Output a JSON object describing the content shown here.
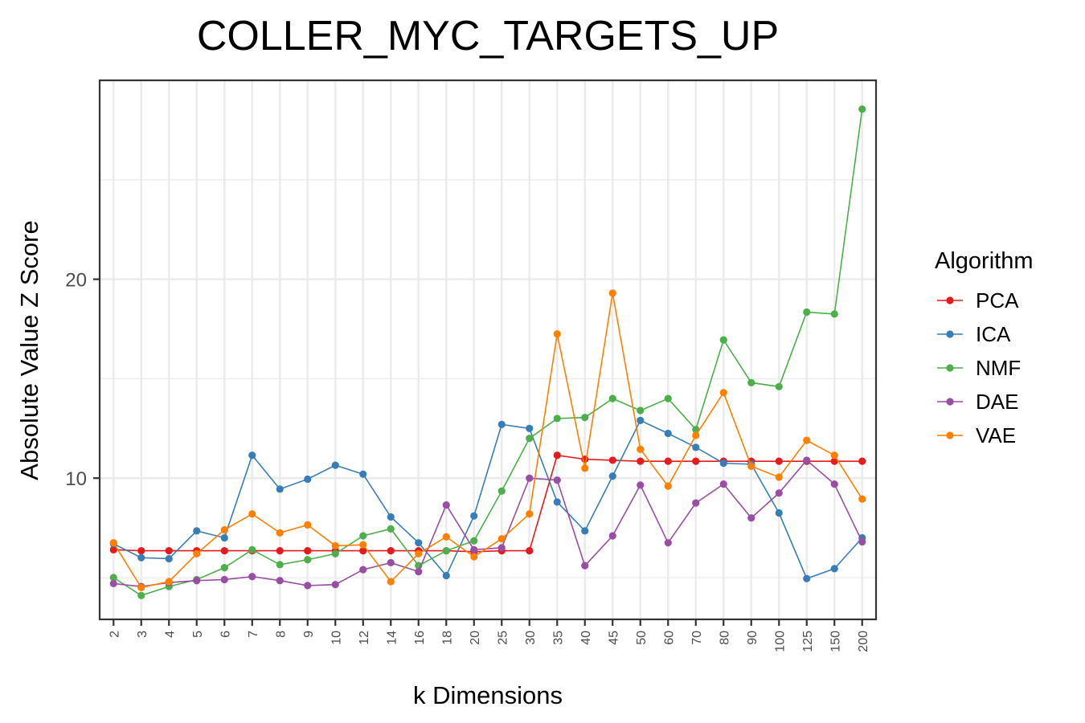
{
  "chart_data": {
    "type": "line",
    "title": "COLLER_MYC_TARGETS_UP",
    "xlabel": "k Dimensions",
    "ylabel": "Absolute Value Z Score",
    "categories": [
      "2",
      "3",
      "4",
      "5",
      "6",
      "7",
      "8",
      "9",
      "10",
      "12",
      "14",
      "16",
      "18",
      "20",
      "25",
      "30",
      "35",
      "40",
      "45",
      "50",
      "60",
      "70",
      "80",
      "90",
      "100",
      "125",
      "150",
      "200"
    ],
    "y_ticks": [
      "10",
      "20"
    ],
    "ylim": [
      2.9,
      30.0
    ],
    "grid": true,
    "legend": {
      "title": "Algorithm",
      "placement": "right"
    },
    "series": [
      {
        "name": "PCA",
        "color": "#e41a1c",
        "values": [
          6.4,
          6.35,
          6.35,
          6.35,
          6.35,
          6.35,
          6.35,
          6.35,
          6.35,
          6.35,
          6.35,
          6.35,
          6.35,
          6.3,
          6.35,
          6.35,
          11.15,
          10.95,
          10.9,
          10.85,
          10.85,
          10.85,
          10.85,
          10.85,
          10.85,
          10.85,
          10.85,
          10.85
        ]
      },
      {
        "name": "ICA",
        "color": "#377eb8",
        "values": [
          6.7,
          6.0,
          5.95,
          7.35,
          7.0,
          11.15,
          9.45,
          9.95,
          10.65,
          10.2,
          8.05,
          6.75,
          5.1,
          8.1,
          12.7,
          12.5,
          8.8,
          7.35,
          10.1,
          12.9,
          12.25,
          11.55,
          10.75,
          10.7,
          8.25,
          4.95,
          5.45,
          7.0
        ]
      },
      {
        "name": "NMF",
        "color": "#4daf4a",
        "values": [
          5.0,
          4.1,
          4.55,
          4.9,
          5.5,
          6.4,
          5.65,
          5.9,
          6.2,
          7.1,
          7.45,
          5.6,
          6.35,
          6.85,
          9.35,
          12.0,
          13.0,
          13.05,
          14.0,
          13.4,
          14.0,
          12.45,
          16.95,
          14.8,
          14.6,
          18.35,
          18.25,
          28.55
        ]
      },
      {
        "name": "DAE",
        "color": "#984ea3",
        "values": [
          4.7,
          4.55,
          4.75,
          4.85,
          4.9,
          5.05,
          4.85,
          4.6,
          4.65,
          5.4,
          5.75,
          5.3,
          8.65,
          6.4,
          6.5,
          10.0,
          9.9,
          5.6,
          7.1,
          9.65,
          6.75,
          8.75,
          9.7,
          8.0,
          9.25,
          10.9,
          9.7,
          6.8
        ]
      },
      {
        "name": "VAE",
        "color": "#ff7f00",
        "values": [
          6.75,
          4.5,
          4.8,
          6.2,
          7.4,
          8.2,
          7.25,
          7.65,
          6.6,
          6.65,
          4.8,
          6.2,
          7.05,
          6.05,
          6.95,
          8.2,
          17.25,
          10.5,
          19.3,
          11.45,
          9.6,
          12.15,
          14.3,
          10.6,
          10.05,
          11.9,
          11.15,
          8.95
        ]
      }
    ]
  }
}
